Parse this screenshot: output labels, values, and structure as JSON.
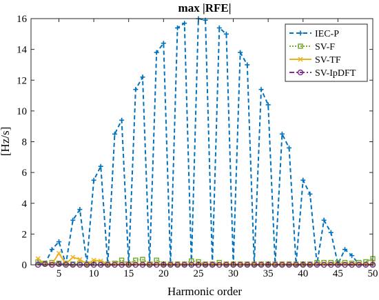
{
  "chart_data": {
    "type": "line",
    "title": "max |RFE|",
    "xlabel": "Harmonic order",
    "ylabel": "[Hz/s]",
    "xlim": [
      1,
      50
    ],
    "ylim": [
      0,
      16
    ],
    "xticks": [
      5,
      10,
      15,
      20,
      25,
      30,
      35,
      40,
      45,
      50
    ],
    "yticks": [
      0,
      2,
      4,
      6,
      8,
      10,
      12,
      14,
      16
    ],
    "grid": false,
    "legend_position": "top-right",
    "x": [
      2,
      3,
      4,
      5,
      6,
      7,
      8,
      9,
      10,
      11,
      12,
      13,
      14,
      15,
      16,
      17,
      18,
      19,
      20,
      21,
      22,
      23,
      24,
      25,
      26,
      27,
      28,
      29,
      30,
      31,
      32,
      33,
      34,
      35,
      36,
      37,
      38,
      39,
      40,
      41,
      42,
      43,
      44,
      45,
      46,
      47,
      48,
      49,
      50
    ],
    "series": [
      {
        "name": "IEC-P",
        "color": "#0072BD",
        "line": "dashed",
        "marker": "plus",
        "values": [
          0.15,
          0.05,
          1.0,
          1.5,
          0.05,
          2.9,
          3.6,
          0.1,
          5.5,
          6.4,
          0.05,
          8.5,
          9.4,
          0.05,
          11.4,
          12.2,
          0.05,
          13.8,
          14.4,
          0.05,
          15.4,
          15.7,
          0.05,
          16.0,
          15.9,
          0.05,
          15.4,
          15.0,
          0.05,
          13.8,
          13.0,
          0.05,
          11.4,
          10.4,
          0.05,
          8.5,
          7.6,
          0.05,
          5.5,
          4.6,
          0.05,
          2.9,
          2.1,
          0.05,
          1.0,
          0.6,
          0.05,
          0.05,
          0.05
        ]
      },
      {
        "name": "SV-F",
        "color": "#77AC30",
        "line": "dotted",
        "marker": "square",
        "values": [
          0.2,
          0.1,
          0.15,
          0.1,
          0.1,
          0.05,
          0.1,
          0.05,
          0.1,
          0.1,
          0.05,
          0.1,
          0.3,
          0.05,
          0.3,
          0.35,
          0.05,
          0.3,
          0.05,
          0.05,
          0.05,
          0.05,
          0.25,
          0.2,
          0.05,
          0.05,
          0.15,
          0.05,
          0.05,
          0.05,
          0.05,
          0.05,
          0.05,
          0.05,
          0.05,
          0.05,
          0.05,
          0.05,
          0.05,
          0.05,
          0.15,
          0.15,
          0.15,
          0.15,
          0.15,
          0.1,
          0.15,
          0.2,
          0.4
        ]
      },
      {
        "name": "SV-TF",
        "color": "#EDB120",
        "line": "solid",
        "marker": "x",
        "values": [
          0.4,
          0.05,
          0.05,
          0.75,
          0.05,
          0.5,
          0.35,
          0.05,
          0.3,
          0.25,
          0.05,
          0.05,
          0.05,
          0.05,
          0.05,
          0.05,
          0.05,
          0.05,
          0.05,
          0.05,
          0.05,
          0.05,
          0.05,
          0.05,
          0.05,
          0.05,
          0.05,
          0.05,
          0.05,
          0.05,
          0.05,
          0.05,
          0.05,
          0.05,
          0.05,
          0.05,
          0.05,
          0.05,
          0.05,
          0.05,
          0.05,
          0.05,
          0.05,
          0.05,
          0.05,
          0.05,
          0.05,
          0.05,
          0.05
        ]
      },
      {
        "name": "SV-IpDFT",
        "color": "#7E2F8E",
        "line": "dashdot",
        "marker": "circle",
        "values": [
          0.0,
          0.05,
          0.0,
          0.05,
          0.0,
          0.0,
          0.0,
          0.0,
          0.0,
          0.0,
          0.0,
          0.0,
          0.0,
          0.0,
          0.0,
          0.0,
          0.0,
          0.0,
          0.0,
          0.0,
          0.0,
          0.0,
          0.0,
          0.0,
          0.0,
          0.0,
          0.0,
          0.0,
          0.0,
          0.0,
          0.0,
          0.0,
          0.0,
          0.0,
          0.0,
          0.0,
          0.0,
          0.0,
          0.0,
          0.0,
          0.0,
          0.0,
          0.0,
          0.0,
          0.0,
          0.0,
          0.0,
          0.0,
          0.0
        ]
      }
    ]
  }
}
